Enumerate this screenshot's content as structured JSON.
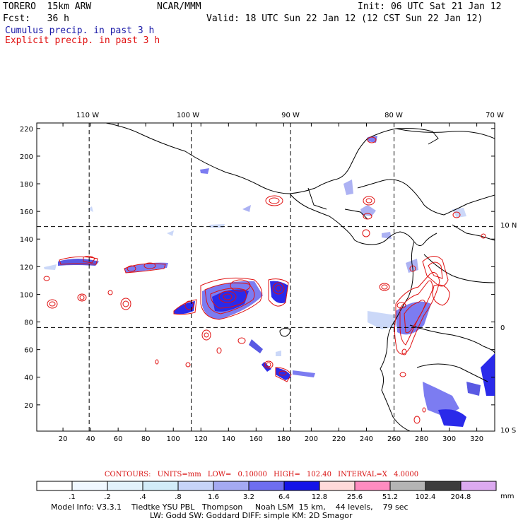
{
  "header": {
    "model": "TORERO  15km ARW",
    "center": "NCAR/MMM",
    "init": "Init: 06 UTC Sat 21 Jan 12",
    "fcst": "Fcst:   36 h",
    "valid": "Valid: 18 UTC Sun 22 Jan 12 (12 CST Sun 22 Jan 12)",
    "legend_cumulus": "Cumulus precip. in past 3 h",
    "legend_explicit": "Explicit precip. in past 3 h"
  },
  "map": {
    "longitude_labels": [
      "110 W",
      "100 W",
      "90 W",
      "80 W",
      "70 W"
    ],
    "latitude_labels": [
      "10 N",
      "0",
      "10 S"
    ],
    "x_ticks": [
      "20",
      "40",
      "60",
      "80",
      "100",
      "120",
      "140",
      "160",
      "180",
      "200",
      "220",
      "240",
      "260",
      "280",
      "300",
      "320"
    ],
    "y_ticks": [
      "220",
      "200",
      "180",
      "160",
      "140",
      "120",
      "100",
      "80",
      "60",
      "40",
      "20"
    ],
    "x_tick_values": [
      20,
      40,
      60,
      80,
      100,
      120,
      140,
      160,
      180,
      200,
      220,
      240,
      260,
      280,
      300,
      320
    ],
    "y_tick_values": [
      220,
      200,
      180,
      160,
      140,
      120,
      100,
      80,
      60,
      40,
      20
    ],
    "x_range": [
      1,
      333
    ],
    "y_range": [
      1,
      224
    ],
    "grid_x_values": [
      39,
      113,
      185,
      260
    ],
    "grid_y_values": [
      149,
      76
    ],
    "coastline_color": "#000000",
    "contour_color": "#e01010"
  },
  "contours_text": "CONTOURS:  UNITS=mm  LOW= 0.10000      HIGH=  102.40      INTERVAL=X  4.0000",
  "colorbar": {
    "unit": "mm",
    "labels": [
      ".1",
      ".2",
      ".4",
      ".8",
      "1.6",
      "3.2",
      "6.4",
      "12.8",
      "25.6",
      "51.2",
      "102.4",
      "204.8"
    ],
    "colors": [
      "#ffffff",
      "#f0f8ff",
      "#e2f2fb",
      "#d2ecf8",
      "#c6d4f8",
      "#a4aaf2",
      "#6e6ef0",
      "#1414e8",
      "#ffdada",
      "#ff8cc0",
      "#b4b4b4",
      "#3c3c3c",
      "#dcaaf0"
    ]
  },
  "info_line1": "Model Info: V3.3.1    Tiedtke YSU PBL   Thompson     Noah LSM  15 km,    44 levels,    79 sec",
  "info_line2": "LW: Godd SW: Goddard DIFF: simple KM: 2D Smagor"
}
